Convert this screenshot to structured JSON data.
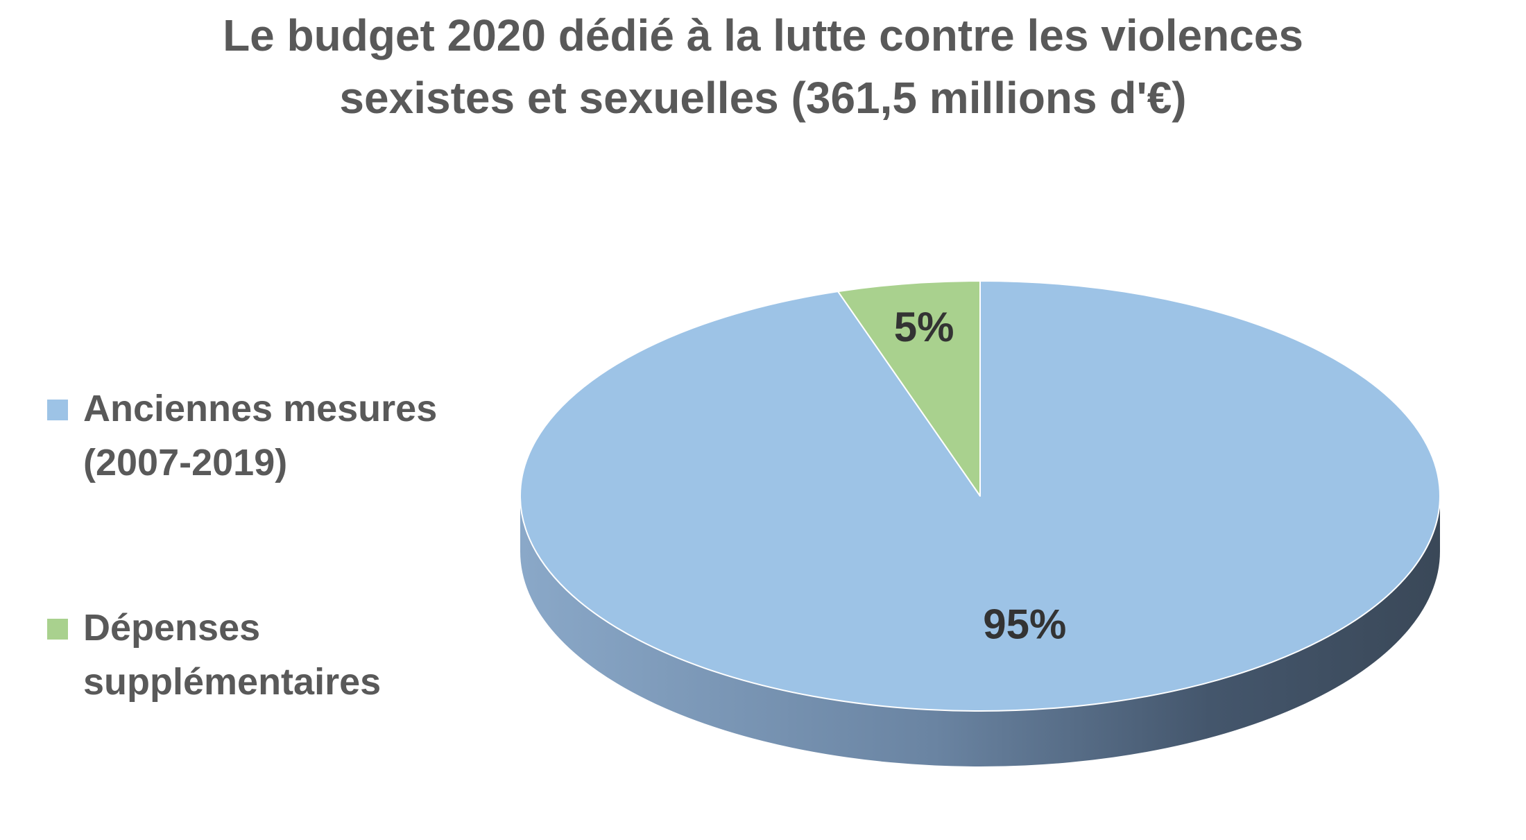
{
  "chart_data": {
    "type": "pie",
    "title": "Le budget 2020 dédié à la lutte contre les violences sexistes et sexuelles (361,5 millions d'€)",
    "title_lines": [
      "Le budget 2020 dédié à la lutte contre les violences",
      "sexistes et sexuelles (361,5 millions d'€)"
    ],
    "style": "3d",
    "legend_position": "left",
    "slices": [
      {
        "label": "Anciennes mesures (2007-2019)",
        "label_lines": [
          "Anciennes mesures",
          "(2007-2019)"
        ],
        "value": 95,
        "data_label": "95%",
        "color": "#9DC3E6"
      },
      {
        "label": "Dépenses supplémentaires",
        "label_lines": [
          "Dépenses",
          "supplémentaires"
        ],
        "value": 5,
        "data_label": "5%",
        "color": "#A9D18E"
      }
    ]
  }
}
